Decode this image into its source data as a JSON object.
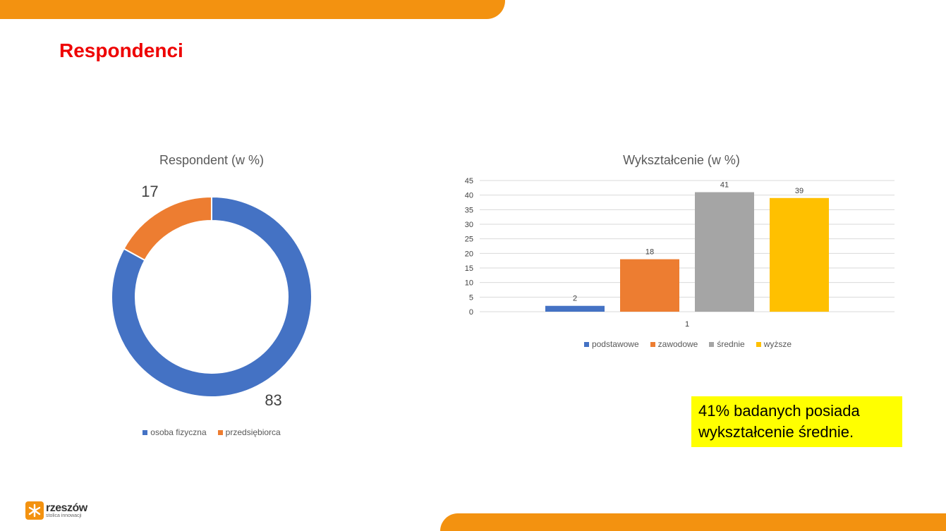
{
  "slide": {
    "title": "Respondenci",
    "callout": {
      "line1": "41% badanych posiada",
      "line2": "wykształcenie średnie."
    },
    "logo": {
      "name": "rzeszów",
      "tagline": "stolica innowacji"
    },
    "colors": {
      "accent_band": "#f39210",
      "title": "#ee0000",
      "callout_bg": "#ffff00"
    }
  },
  "chart_data": [
    {
      "type": "pie",
      "title": "Respondent (w %)",
      "labels": [
        "osoba fizyczna",
        "przedsiębiorca"
      ],
      "values": [
        83,
        17
      ],
      "colors": [
        "#4472c4",
        "#ed7d31"
      ],
      "legend": "bottom",
      "donut": true
    },
    {
      "type": "bar",
      "title": "Wykształcenie (w %)",
      "categories": [
        "1"
      ],
      "series": [
        {
          "name": "podstawowe",
          "values": [
            2
          ],
          "color": "#4472c4"
        },
        {
          "name": "zawodowe",
          "values": [
            18
          ],
          "color": "#ed7d31"
        },
        {
          "name": "średnie",
          "values": [
            41
          ],
          "color": "#a5a5a5"
        },
        {
          "name": "wyższe",
          "values": [
            39
          ],
          "color": "#ffc000"
        }
      ],
      "ylim": [
        0,
        45
      ],
      "yticks": [
        0,
        5,
        10,
        15,
        20,
        25,
        30,
        35,
        40,
        45
      ],
      "grid": true,
      "legend": "bottom"
    }
  ]
}
